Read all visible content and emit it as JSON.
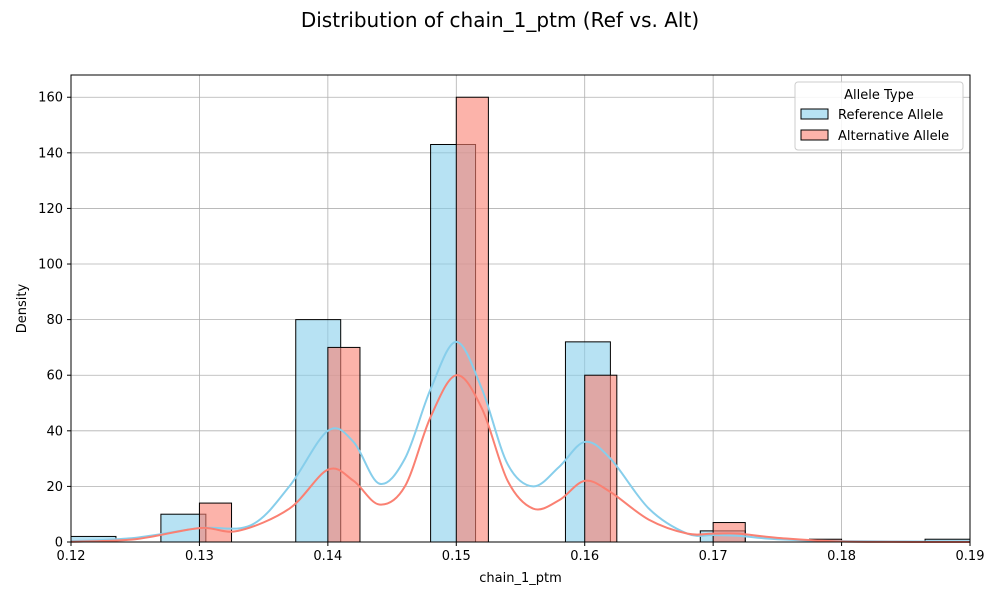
{
  "chart_data": {
    "type": "histogram",
    "title": "Distribution of chain_1_ptm (Ref vs. Alt)",
    "xlabel": "chain_1_ptm",
    "ylabel": "Density",
    "xlim": [
      0.12,
      0.19
    ],
    "ylim": [
      0,
      168
    ],
    "xticks": [
      "0.12",
      "0.13",
      "0.14",
      "0.15",
      "0.16",
      "0.17",
      "0.18",
      "0.19"
    ],
    "yticks": [
      "0",
      "20",
      "40",
      "60",
      "80",
      "100",
      "120",
      "140",
      "160"
    ],
    "grid": true,
    "legend": {
      "title": "Allele Type",
      "placement": "top-right"
    },
    "series": [
      {
        "name": "Reference Allele",
        "color": "#87ceeb",
        "bin_width": 0.0035,
        "bins": [
          {
            "x_start": 0.12,
            "value": 2
          },
          {
            "x_start": 0.127,
            "value": 10
          },
          {
            "x_start": 0.1375,
            "value": 80
          },
          {
            "x_start": 0.148,
            "value": 143
          },
          {
            "x_start": 0.1585,
            "value": 72
          },
          {
            "x_start": 0.169,
            "value": 4
          },
          {
            "x_start": 0.1865,
            "value": 1
          }
        ],
        "kde": [
          [
            0.12,
            0.3
          ],
          [
            0.125,
            1.5
          ],
          [
            0.13,
            5
          ],
          [
            0.134,
            6
          ],
          [
            0.137,
            20
          ],
          [
            0.14,
            40
          ],
          [
            0.142,
            36
          ],
          [
            0.144,
            21
          ],
          [
            0.146,
            30
          ],
          [
            0.148,
            55
          ],
          [
            0.15,
            72
          ],
          [
            0.152,
            55
          ],
          [
            0.154,
            28
          ],
          [
            0.156,
            20
          ],
          [
            0.158,
            27
          ],
          [
            0.16,
            36
          ],
          [
            0.162,
            30
          ],
          [
            0.165,
            12
          ],
          [
            0.168,
            3
          ],
          [
            0.17,
            2.5
          ],
          [
            0.172,
            2.2
          ],
          [
            0.175,
            1
          ],
          [
            0.18,
            0.3
          ],
          [
            0.19,
            0.1
          ]
        ]
      },
      {
        "name": "Alternative Allele",
        "color": "#fa8072",
        "bin_width": 0.0025,
        "bins": [
          {
            "x_start": 0.13,
            "value": 14
          },
          {
            "x_start": 0.14,
            "value": 70
          },
          {
            "x_start": 0.15,
            "value": 160
          },
          {
            "x_start": 0.16,
            "value": 60
          },
          {
            "x_start": 0.17,
            "value": 7
          },
          {
            "x_start": 0.1775,
            "value": 1
          }
        ],
        "kde": [
          [
            0.12,
            0.1
          ],
          [
            0.125,
            1
          ],
          [
            0.13,
            5
          ],
          [
            0.133,
            4
          ],
          [
            0.137,
            12
          ],
          [
            0.14,
            26
          ],
          [
            0.142,
            22
          ],
          [
            0.144,
            13.5
          ],
          [
            0.146,
            20
          ],
          [
            0.148,
            45
          ],
          [
            0.15,
            60
          ],
          [
            0.152,
            48
          ],
          [
            0.154,
            22
          ],
          [
            0.156,
            12
          ],
          [
            0.158,
            15
          ],
          [
            0.16,
            22
          ],
          [
            0.162,
            18
          ],
          [
            0.165,
            8
          ],
          [
            0.168,
            3
          ],
          [
            0.17,
            3
          ],
          [
            0.172,
            3
          ],
          [
            0.175,
            1.5
          ],
          [
            0.18,
            0.2
          ],
          [
            0.19,
            0
          ]
        ]
      }
    ]
  }
}
